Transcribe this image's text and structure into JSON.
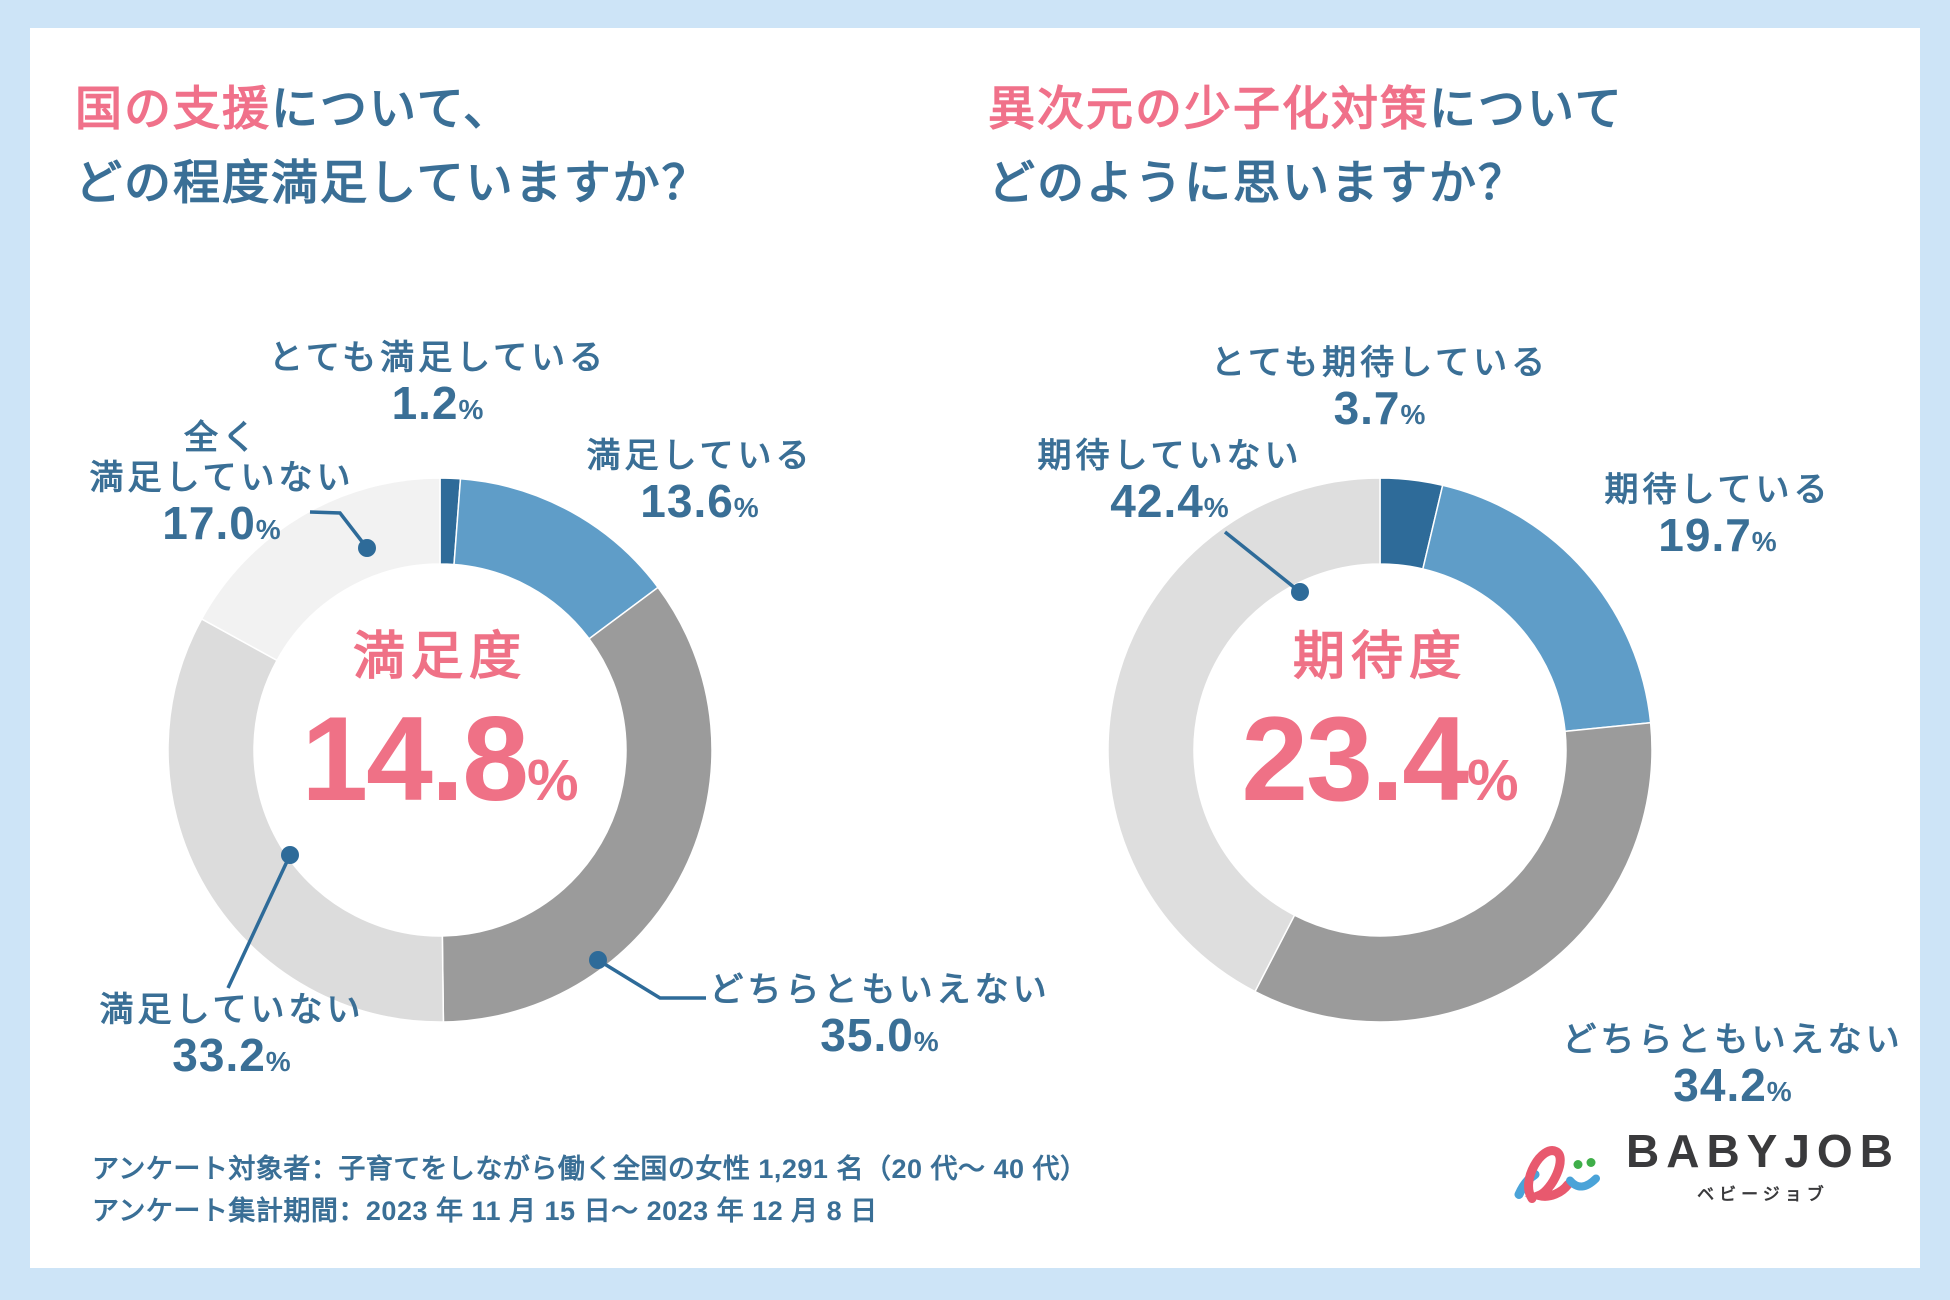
{
  "page": {
    "background": "#cde4f7",
    "card_background": "#ffffff"
  },
  "colors": {
    "pink": "#ef7186",
    "blue": "#3a6f96",
    "leader": "#2e6b99"
  },
  "titles": {
    "left": {
      "highlight": "国の支援",
      "rest": "について、",
      "line2": "どの程度満足していますか？"
    },
    "right": {
      "highlight": "異次元の少子化対策",
      "rest": "について",
      "line2": "どのように思いますか？"
    }
  },
  "charts": [
    {
      "unit": "%",
      "center_label": "満足度",
      "center_value": "14.8",
      "segments": [
        {
          "label": "とても満足している",
          "label_lines": [
            "とても満足している"
          ],
          "display": "1.2",
          "value": 1.2,
          "color": "#2e6b99"
        },
        {
          "label": "満足している",
          "label_lines": [
            "満足している"
          ],
          "display": "13.6",
          "value": 13.6,
          "color": "#5f9dc8"
        },
        {
          "label": "どちらともいえない",
          "label_lines": [
            "どちらともいえない"
          ],
          "display": "35.0",
          "value": 35.0,
          "color": "#9b9b9b"
        },
        {
          "label": "満足していない",
          "label_lines": [
            "満足していない"
          ],
          "display": "33.2",
          "value": 33.2,
          "color": "#dcdcdc"
        },
        {
          "label": "全く満足していない",
          "label_lines": [
            "全く",
            "満足していない"
          ],
          "display": "17.0",
          "value": 17.0,
          "color": "#f2f2f2"
        }
      ]
    },
    {
      "unit": "%",
      "center_label": "期待度",
      "center_value": "23.4",
      "segments": [
        {
          "label": "とても期待している",
          "label_lines": [
            "とても期待している"
          ],
          "display": "3.7",
          "value": 3.7,
          "color": "#2e6b99"
        },
        {
          "label": "期待している",
          "label_lines": [
            "期待している"
          ],
          "display": "19.7",
          "value": 19.7,
          "color": "#5f9dc8"
        },
        {
          "label": "どちらともいえない",
          "label_lines": [
            "どちらともいえない"
          ],
          "display": "34.2",
          "value": 34.2,
          "color": "#9b9b9b"
        },
        {
          "label": "期待していない",
          "label_lines": [
            "期待していない"
          ],
          "display": "42.4",
          "value": 42.4,
          "color": "#dedede"
        }
      ]
    }
  ],
  "chart_data": [
    {
      "type": "pie",
      "title": "国の支援について、どの程度満足していますか？",
      "center_label": "満足度",
      "center_value": "14.8%",
      "categories": [
        "とても満足している",
        "満足している",
        "どちらともいえない",
        "満足していない",
        "全く満足していない"
      ],
      "values": [
        1.2,
        13.6,
        35.0,
        33.2,
        17.0
      ],
      "unit": "%",
      "legend_position": "around-donut",
      "start_angle_deg": 0,
      "direction": "clockwise"
    },
    {
      "type": "pie",
      "title": "異次元の少子化対策についてどのように思いますか？",
      "center_label": "期待度",
      "center_value": "23.4%",
      "categories": [
        "とても期待している",
        "期待している",
        "どちらともいえない",
        "期待していない"
      ],
      "values": [
        3.7,
        19.7,
        34.2,
        42.4
      ],
      "unit": "%",
      "legend_position": "around-donut",
      "start_angle_deg": 0,
      "direction": "clockwise"
    }
  ],
  "footer": {
    "line1": "アンケート対象者：子育てをしながら働く全国の女性 1,291 名（20 代～ 40 代）",
    "line2": "アンケート集計期間：2023 年 11 月 15 日～ 2023 年 12 月 8 日"
  },
  "logo": {
    "brand": "BABYJOB",
    "subtitle": "ベビージョブ"
  }
}
